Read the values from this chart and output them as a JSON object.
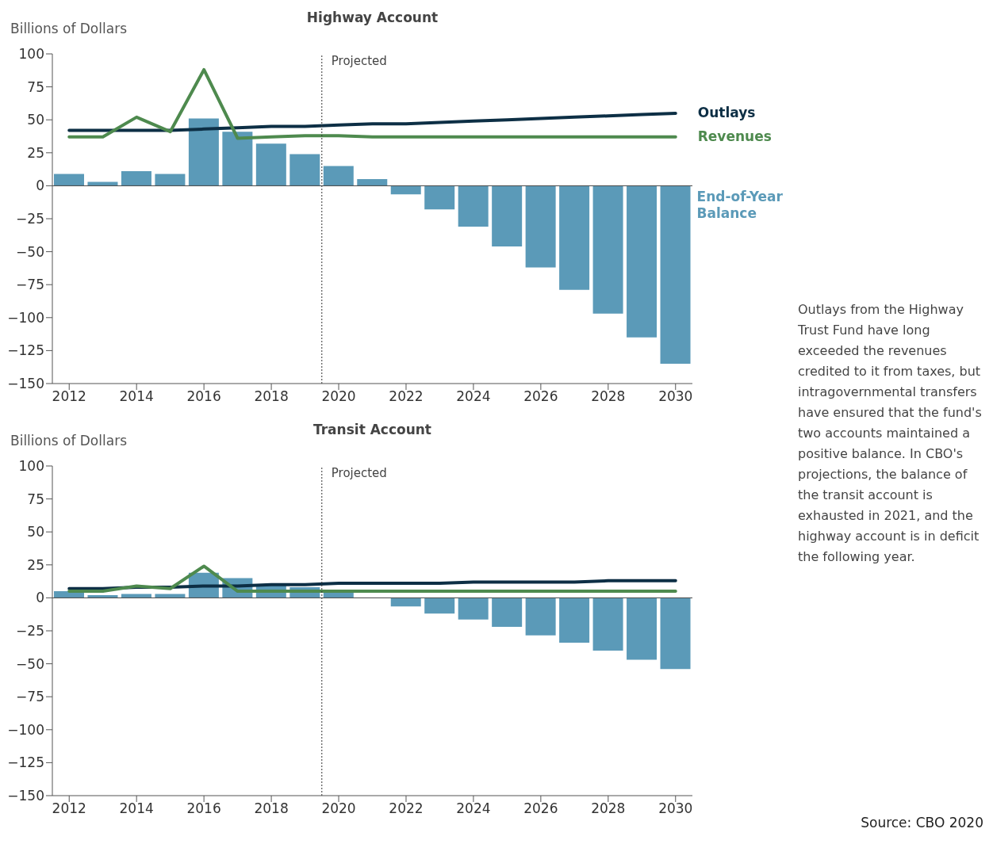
{
  "chart_data": [
    {
      "type": "bar",
      "title": "Highway Account",
      "ylabel": "Billions of Dollars",
      "x": [
        2012,
        2013,
        2014,
        2015,
        2016,
        2017,
        2018,
        2019,
        2020,
        2021,
        2022,
        2023,
        2024,
        2025,
        2026,
        2027,
        2028,
        2029,
        2030
      ],
      "series": [
        {
          "name": "End-of-Year Balance",
          "color": "#5b9ab8",
          "values": [
            9,
            3,
            11,
            9,
            51,
            41,
            32,
            24,
            15,
            5,
            -6.5,
            -18,
            -31,
            -46,
            -62,
            -79,
            -97,
            -115,
            -135
          ]
        },
        {
          "name": "Outlays",
          "type": "line",
          "color": "#0d2f45",
          "values": [
            42,
            42,
            42,
            42,
            43,
            44,
            45,
            45,
            46,
            47,
            47,
            48,
            49,
            50,
            51,
            52,
            53,
            54,
            55
          ]
        },
        {
          "name": "Revenues",
          "type": "line",
          "color": "#4e8a4e",
          "values": [
            37,
            37,
            52,
            41,
            88,
            36,
            37,
            38,
            38,
            37,
            37,
            37,
            37,
            37,
            37,
            37,
            37,
            37,
            37
          ]
        }
      ],
      "xlim": [
        2011.5,
        2030.5
      ],
      "xticks": [
        2012,
        2014,
        2016,
        2018,
        2020,
        2022,
        2024,
        2026,
        2028,
        2030
      ],
      "ylim": [
        -150,
        100
      ],
      "yticks": [
        -150,
        -125,
        -100,
        -75,
        -50,
        -25,
        0,
        25,
        50,
        75,
        100
      ],
      "ref_lines": [
        {
          "axis": "x",
          "value": 2019.5,
          "label": "Projected",
          "line_style": "dotted",
          "color": "#333333"
        },
        {
          "axis": "y",
          "value": 0,
          "color": "#444444"
        }
      ],
      "legend": false,
      "grid": false,
      "annotations": [
        "Outlays from the Highway Trust Fund have long exceeded the revenues credited to it from taxes, but intragovernmental transfers have ensured that the fund's two accounts maintained a positive balance. In CBO's projections, the balance of the transit account is exhausted in 2021, and the highway account is in deficit the following year."
      ]
    },
    {
      "type": "bar",
      "title": "Transit Account",
      "ylabel": "Billions of Dollars",
      "x": [
        2012,
        2013,
        2014,
        2015,
        2016,
        2017,
        2018,
        2019,
        2020,
        2021,
        2022,
        2023,
        2024,
        2025,
        2026,
        2027,
        2028,
        2029,
        2030
      ],
      "series": [
        {
          "color": "#5b9ab8",
          "values": [
            5,
            2,
            3,
            3,
            19,
            15,
            10,
            8,
            5,
            0,
            -6.5,
            -12,
            -16.5,
            -22,
            -28.5,
            -34,
            -40,
            -47,
            -54
          ]
        },
        {
          "type": "line",
          "color": "#0d2f45",
          "values": [
            7,
            7,
            8,
            8,
            9,
            9,
            10,
            10,
            11,
            11,
            11,
            11,
            12,
            12,
            12,
            12,
            13,
            13,
            13
          ]
        },
        {
          "type": "line",
          "color": "#4e8a4e",
          "values": [
            5,
            5,
            9,
            7,
            24,
            5,
            5,
            5,
            5,
            5,
            5,
            5,
            5,
            5,
            5,
            5,
            5,
            5,
            5
          ]
        }
      ],
      "xlim": [
        2011.5,
        2030.5
      ],
      "xticks": [
        2012,
        2014,
        2016,
        2018,
        2020,
        2022,
        2024,
        2026,
        2028,
        2030
      ],
      "ylim": [
        -150,
        100
      ],
      "yticks": [
        -150,
        -125,
        -100,
        -75,
        -50,
        -25,
        0,
        25,
        50,
        75,
        100
      ],
      "ref_lines": [
        {
          "axis": "x",
          "value": 2019.5,
          "label": "Projected",
          "line_style": "dotted",
          "color": "#333333"
        },
        {
          "axis": "y",
          "value": 0,
          "color": "#444444"
        }
      ],
      "legend": false,
      "grid": false,
      "annotations": [
        "Source: CBO 2020"
      ]
    }
  ]
}
